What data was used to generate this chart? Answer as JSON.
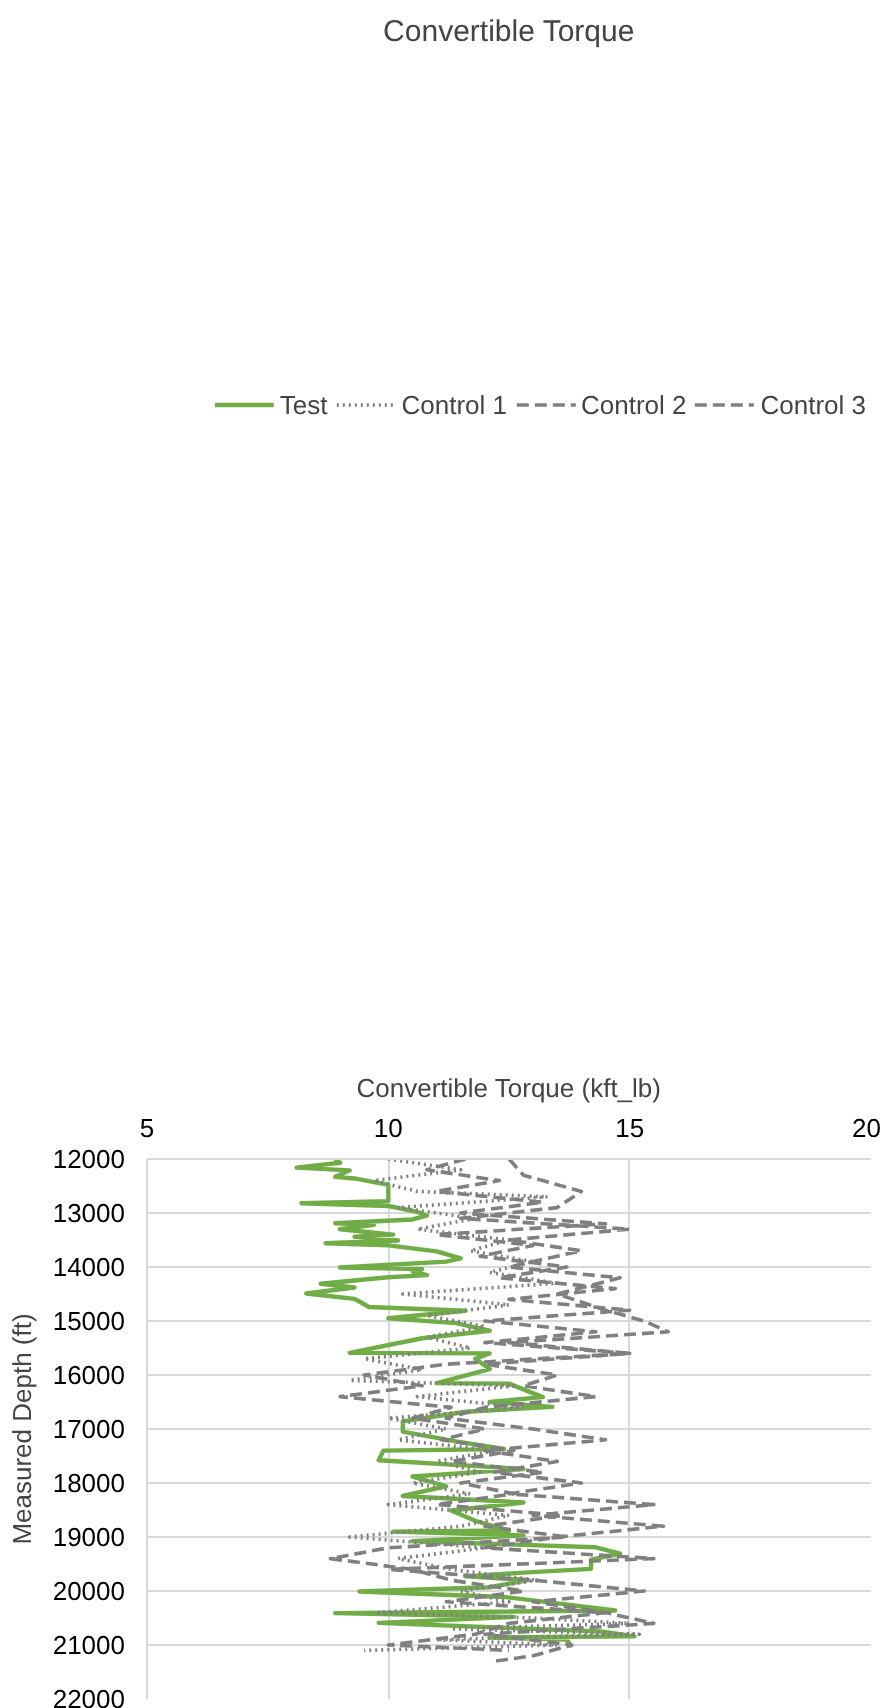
{
  "chart_data": {
    "type": "line",
    "title": "Convertible Torque",
    "xlabel": "Convertible Torque (kft_lb)",
    "ylabel": "Measured Depth (ft)",
    "orientation": "horizontal",
    "xlim": [
      5,
      20
    ],
    "xticks": [
      5,
      10,
      15,
      20
    ],
    "ylim": [
      22000,
      12000
    ],
    "yticks": [
      12000,
      13000,
      14000,
      15000,
      16000,
      17000,
      18000,
      19000,
      20000,
      21000,
      22000
    ],
    "grid": true,
    "legend": "top",
    "series": [
      {
        "name": "Test",
        "color": "#70ad47",
        "line_style": "solid",
        "x": [
          12000,
          12070,
          12160,
          12210,
          12330,
          12360,
          12480,
          12580,
          12780,
          12820,
          12870,
          12980,
          13050,
          13120,
          13190,
          13220,
          13300,
          13400,
          13440,
          13510,
          13560,
          13600,
          13710,
          13840,
          13900,
          14010,
          14040,
          14080,
          14150,
          14190,
          14310,
          14380,
          14490,
          14590,
          14740,
          14810,
          14950,
          15040,
          15180,
          15320,
          15590,
          15600,
          15700,
          15890,
          16150,
          16160,
          16410,
          16500,
          16590,
          16680,
          16860,
          17050,
          17230,
          17370,
          17400,
          17580,
          17740,
          17880,
          18060,
          18240,
          18360,
          18510,
          18700,
          18880,
          18900,
          18970,
          19080,
          19190,
          19310,
          19420,
          19590,
          19660,
          19730,
          19800,
          19930,
          20010,
          20110,
          20360,
          20410,
          20480,
          20590,
          20750,
          20840,
          20860,
          20900,
          21040
        ],
        "values": [
          8.9,
          9.0,
          8.1,
          9.2,
          8.9,
          9.3,
          10.0,
          10.0,
          10.0,
          8.2,
          10.0,
          10.6,
          10.8,
          10.5,
          8.9,
          9.7,
          9.0,
          10.1,
          9.3,
          10.2,
          8.7,
          10.0,
          11.0,
          11.5,
          11.2,
          9.0,
          10.7,
          10.5,
          10.8,
          10.0,
          8.6,
          9.3,
          8.3,
          9.3,
          9.6,
          11.6,
          10.0,
          11.4,
          12.1,
          10.7,
          9.2,
          12.1,
          11.8,
          12.1,
          11.0,
          12.5,
          13.2,
          12.1,
          13.4,
          11.6,
          10.3,
          10.3,
          11.4,
          12.4,
          9.9,
          9.8,
          12.8,
          10.5,
          11.2,
          10.3,
          12.8,
          11.3,
          11.8,
          12.5,
          10.1,
          12.8,
          10.5,
          14.3,
          14.8,
          14.2,
          14.2,
          12.8,
          11.6,
          12.9,
          12.1,
          9.4,
          12.4,
          14.7,
          8.9,
          12.6,
          9.8,
          14.4,
          15.1,
          12.1,
          13.7,
          13.8
        ]
      },
      {
        "name": "Control 1",
        "color": "#808080",
        "line_style": "dotted",
        "x": [
          12000,
          12200,
          12400,
          12600,
          12700,
          12900,
          13100,
          13300,
          13500,
          13700,
          13900,
          14100,
          14300,
          14500,
          14700,
          14900,
          15100,
          15300,
          15500,
          15700,
          15900,
          16100,
          16200,
          16400,
          16600,
          16800,
          17000,
          17200,
          17400,
          17600,
          17800,
          18000,
          18200,
          18400,
          18600,
          18800,
          19000,
          19200,
          19400,
          19600,
          19800,
          20000,
          20200,
          20400,
          20500,
          20600,
          20700,
          20800,
          20900,
          21000,
          21100
        ],
        "values": [
          10.0,
          11.5,
          9.7,
          10.6,
          13.3,
          10.2,
          11.8,
          10.6,
          12.5,
          11.7,
          13.0,
          12.1,
          13.5,
          10.3,
          12.5,
          10.8,
          12.0,
          10.8,
          11.7,
          9.5,
          10.7,
          9.2,
          12.6,
          10.6,
          12.8,
          10.0,
          11.2,
          10.2,
          12.2,
          11.0,
          11.9,
          10.5,
          11.7,
          10.0,
          12.5,
          11.5,
          9.2,
          12.0,
          10.2,
          11.3,
          13.1,
          11.5,
          12.5,
          9.8,
          13.0,
          15.0,
          11.3,
          15.2,
          11.0,
          13.5,
          9.5
        ]
      },
      {
        "name": "Control 2",
        "color": "#808080",
        "line_style": "dashed",
        "x": [
          12000,
          12200,
          12400,
          12600,
          12800,
          13000,
          13200,
          13400,
          13600,
          13800,
          14000,
          14200,
          14400,
          14600,
          14800,
          15000,
          15200,
          15400,
          15600,
          15800,
          16000,
          16200,
          16400,
          16600,
          16800,
          17000,
          17200,
          17400,
          17600,
          17800,
          18000,
          18200,
          18400,
          18600,
          18800,
          19000,
          19200,
          19400,
          19600,
          19800,
          20000,
          20200,
          20400,
          20600,
          20800,
          21000,
          21100
        ],
        "values": [
          11.6,
          10.8,
          12.3,
          11.0,
          13.2,
          11.5,
          14.5,
          11.0,
          13.0,
          11.9,
          13.7,
          12.3,
          14.7,
          12.5,
          15.0,
          12.0,
          14.3,
          12.0,
          15.0,
          11.2,
          9.5,
          10.7,
          9.0,
          11.3,
          10.5,
          12.0,
          11.1,
          12.6,
          11.3,
          13.2,
          11.5,
          12.6,
          11.0,
          13.6,
          12.0,
          13.7,
          10.0,
          8.8,
          10.5,
          11.3,
          12.8,
          11.2,
          14.5,
          12.5,
          11.8,
          10.0,
          12.5
        ]
      },
      {
        "name": "Control 3",
        "color": "#808080",
        "line_style": "dashed",
        "x": [
          12000,
          12300,
          12600,
          12900,
          13100,
          13300,
          13500,
          13700,
          14000,
          14200,
          14500,
          14800,
          15000,
          15200,
          15400,
          15600,
          15800,
          16000,
          16200,
          16400,
          16600,
          16800,
          17000,
          17200,
          17400,
          17600,
          17800,
          18000,
          18200,
          18400,
          18600,
          18800,
          19000,
          19200,
          19400,
          19600,
          19800,
          20000,
          20200,
          20400,
          20600,
          20800,
          21000,
          21200,
          21300
        ],
        "values": [
          12.5,
          12.8,
          14.0,
          13.5,
          11.5,
          15.0,
          12.5,
          14.0,
          12.5,
          14.8,
          13.5,
          14.5,
          15.3,
          15.8,
          12.5,
          15.0,
          12.0,
          13.5,
          12.8,
          14.3,
          12.0,
          11.2,
          13.0,
          14.5,
          12.0,
          13.5,
          12.2,
          14.0,
          12.5,
          15.5,
          13.0,
          15.7,
          13.5,
          12.0,
          15.5,
          10.0,
          13.0,
          15.3,
          13.0,
          14.5,
          15.5,
          12.0,
          13.8,
          13.0,
          12.2
        ]
      }
    ]
  }
}
